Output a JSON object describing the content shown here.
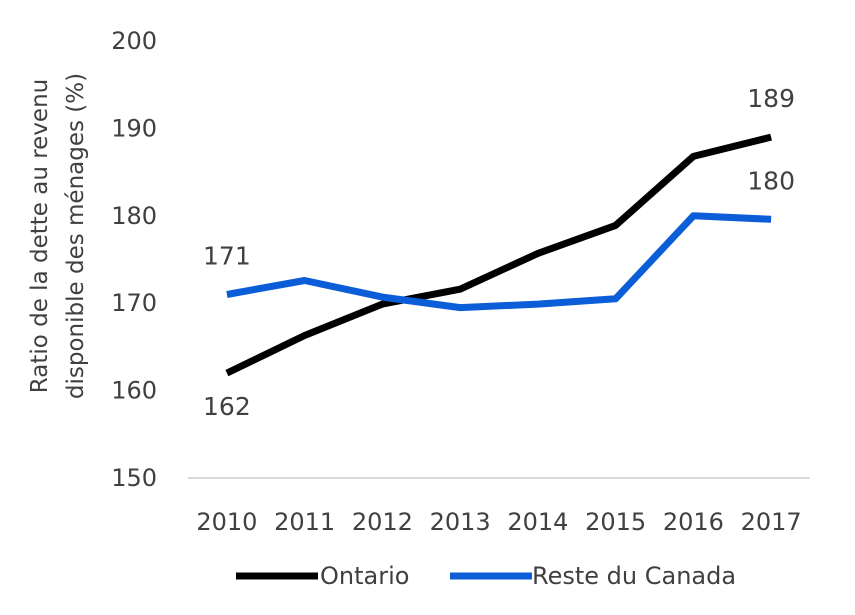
{
  "chart_data": {
    "type": "line",
    "title": "",
    "xlabel": "",
    "ylabel_lines": [
      "Ratio de la dette au revenu",
      "disponible des ménages (%)"
    ],
    "x": [
      "2010",
      "2011",
      "2012",
      "2013",
      "2014",
      "2015",
      "2016",
      "2017"
    ],
    "ylim": [
      150,
      200
    ],
    "yticks": [
      150,
      160,
      170,
      180,
      190,
      200
    ],
    "grid": false,
    "legend_position": "bottom",
    "series": [
      {
        "name": "Ontario",
        "color": "#000000",
        "values": [
          162,
          166.3,
          169.9,
          171.6,
          175.7,
          178.9,
          186.8,
          189
        ],
        "labels": [
          {
            "index": 0,
            "text": "162"
          },
          {
            "index": 7,
            "text": "189"
          }
        ]
      },
      {
        "name": "Reste du Canada",
        "color": "#0b5ed7",
        "values": [
          171,
          172.6,
          170.7,
          169.5,
          169.9,
          170.5,
          180,
          179.6
        ],
        "labels": [
          {
            "index": 0,
            "text": "171"
          },
          {
            "index": 7,
            "text": "180"
          }
        ]
      }
    ]
  }
}
